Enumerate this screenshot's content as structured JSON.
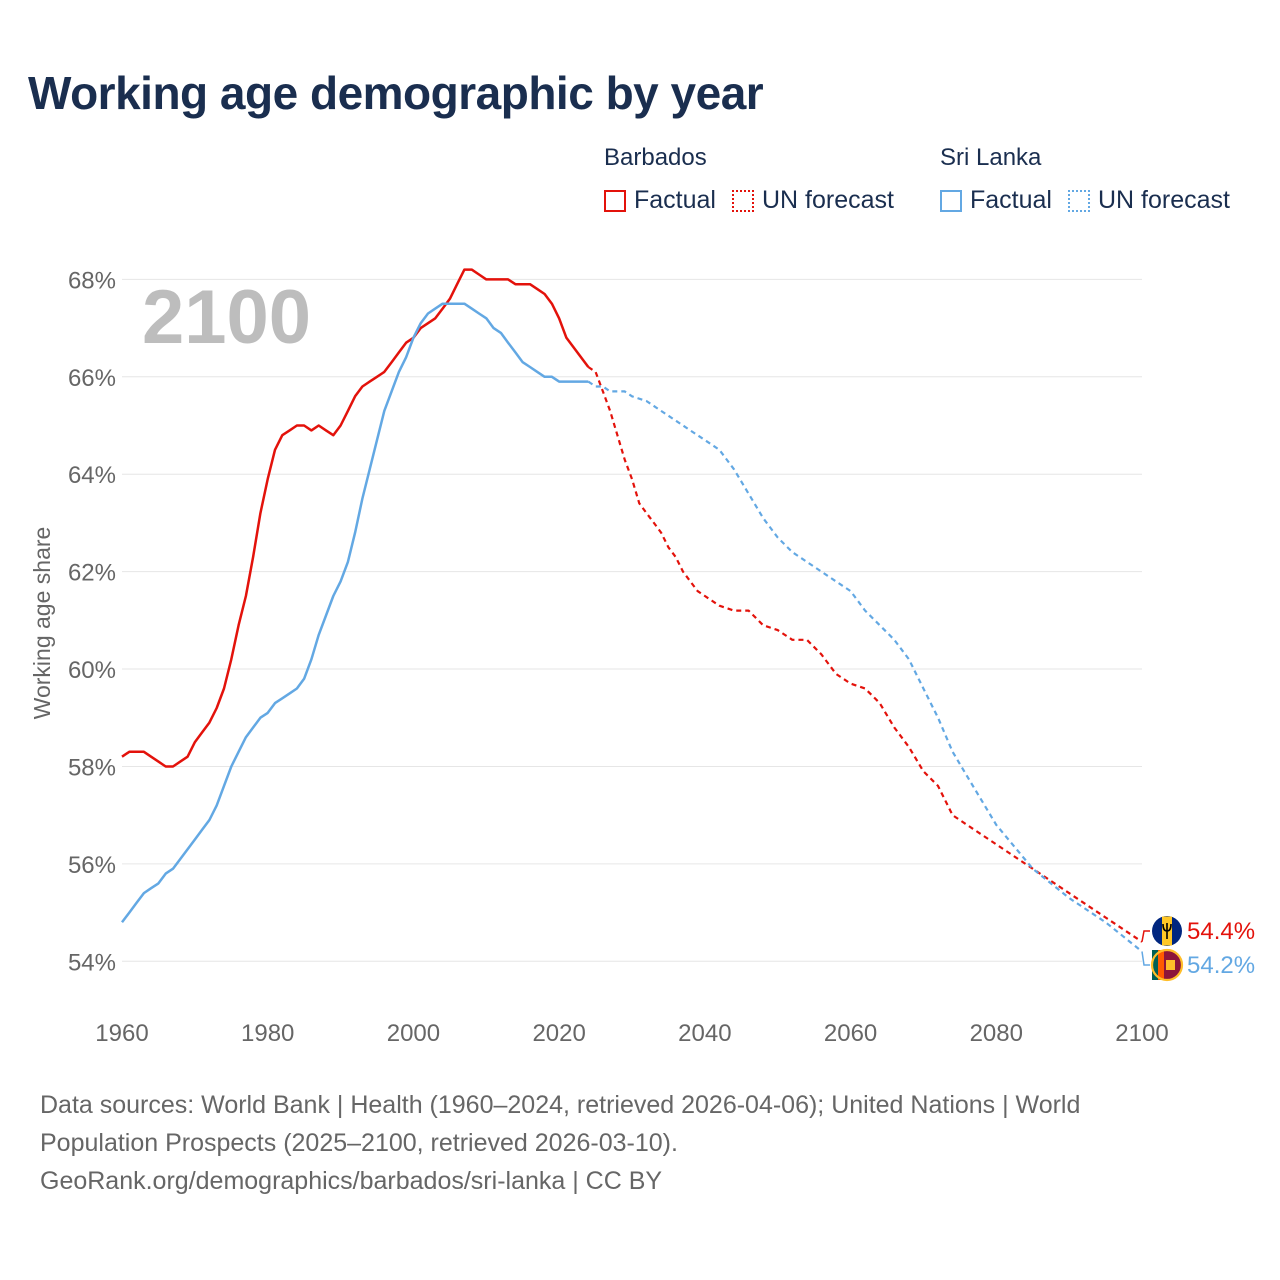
{
  "header": {
    "title": "Working age demographic by year"
  },
  "legend": {
    "groups": [
      {
        "name": "Barbados",
        "color": "#e3120b",
        "items": [
          {
            "label": "Factual",
            "style": "solid"
          },
          {
            "label": "UN forecast",
            "style": "dotted"
          }
        ]
      },
      {
        "name": "Sri Lanka",
        "color": "#63a8e3",
        "items": [
          {
            "label": "Factual",
            "style": "solid"
          },
          {
            "label": "UN forecast",
            "style": "dotted"
          }
        ]
      }
    ]
  },
  "chart_data": {
    "type": "line",
    "year_label": "2100",
    "ylabel": "Working age share",
    "xlabel": "",
    "xlim": [
      1960,
      2100
    ],
    "ylim": [
      53,
      68.5
    ],
    "x_ticks": [
      1960,
      1980,
      2000,
      2020,
      2040,
      2060,
      2080,
      2100
    ],
    "y_ticks": [
      54,
      56,
      58,
      60,
      62,
      64,
      66,
      68
    ],
    "y_tick_labels": [
      "54%",
      "56%",
      "58%",
      "60%",
      "62%",
      "64%",
      "66%",
      "68%"
    ],
    "factual_end_year": 2024,
    "series": [
      {
        "name": "Barbados",
        "color": "#e3120b",
        "end_label": "54.4%",
        "flag": "barbados-flag-icon",
        "points": [
          [
            1960,
            58.2
          ],
          [
            1961,
            58.3
          ],
          [
            1962,
            58.3
          ],
          [
            1963,
            58.3
          ],
          [
            1964,
            58.2
          ],
          [
            1965,
            58.1
          ],
          [
            1966,
            58.0
          ],
          [
            1967,
            58.0
          ],
          [
            1968,
            58.1
          ],
          [
            1969,
            58.2
          ],
          [
            1970,
            58.5
          ],
          [
            1971,
            58.7
          ],
          [
            1972,
            58.9
          ],
          [
            1973,
            59.2
          ],
          [
            1974,
            59.6
          ],
          [
            1975,
            60.2
          ],
          [
            1976,
            60.9
          ],
          [
            1977,
            61.5
          ],
          [
            1978,
            62.3
          ],
          [
            1979,
            63.2
          ],
          [
            1980,
            63.9
          ],
          [
            1981,
            64.5
          ],
          [
            1982,
            64.8
          ],
          [
            1983,
            64.9
          ],
          [
            1984,
            65.0
          ],
          [
            1985,
            65.0
          ],
          [
            1986,
            64.9
          ],
          [
            1987,
            65.0
          ],
          [
            1988,
            64.9
          ],
          [
            1989,
            64.8
          ],
          [
            1990,
            65.0
          ],
          [
            1991,
            65.3
          ],
          [
            1992,
            65.6
          ],
          [
            1993,
            65.8
          ],
          [
            1994,
            65.9
          ],
          [
            1995,
            66.0
          ],
          [
            1996,
            66.1
          ],
          [
            1997,
            66.3
          ],
          [
            1998,
            66.5
          ],
          [
            1999,
            66.7
          ],
          [
            2000,
            66.8
          ],
          [
            2001,
            67.0
          ],
          [
            2002,
            67.1
          ],
          [
            2003,
            67.2
          ],
          [
            2004,
            67.4
          ],
          [
            2005,
            67.6
          ],
          [
            2006,
            67.9
          ],
          [
            2007,
            68.2
          ],
          [
            2008,
            68.2
          ],
          [
            2009,
            68.1
          ],
          [
            2010,
            68.0
          ],
          [
            2011,
            68.0
          ],
          [
            2012,
            68.0
          ],
          [
            2013,
            68.0
          ],
          [
            2014,
            67.9
          ],
          [
            2015,
            67.9
          ],
          [
            2016,
            67.9
          ],
          [
            2017,
            67.8
          ],
          [
            2018,
            67.7
          ],
          [
            2019,
            67.5
          ],
          [
            2020,
            67.2
          ],
          [
            2021,
            66.8
          ],
          [
            2022,
            66.6
          ],
          [
            2023,
            66.4
          ],
          [
            2024,
            66.2
          ],
          [
            2025,
            66.1
          ],
          [
            2026,
            65.7
          ],
          [
            2027,
            65.3
          ],
          [
            2028,
            64.8
          ],
          [
            2029,
            64.3
          ],
          [
            2030,
            63.9
          ],
          [
            2031,
            63.4
          ],
          [
            2032,
            63.2
          ],
          [
            2033,
            63.0
          ],
          [
            2034,
            62.8
          ],
          [
            2035,
            62.5
          ],
          [
            2036,
            62.3
          ],
          [
            2037,
            62.0
          ],
          [
            2038,
            61.8
          ],
          [
            2039,
            61.6
          ],
          [
            2040,
            61.5
          ],
          [
            2042,
            61.3
          ],
          [
            2044,
            61.2
          ],
          [
            2046,
            61.2
          ],
          [
            2048,
            60.9
          ],
          [
            2050,
            60.8
          ],
          [
            2052,
            60.6
          ],
          [
            2054,
            60.6
          ],
          [
            2056,
            60.3
          ],
          [
            2058,
            59.9
          ],
          [
            2060,
            59.7
          ],
          [
            2062,
            59.6
          ],
          [
            2064,
            59.3
          ],
          [
            2066,
            58.8
          ],
          [
            2068,
            58.4
          ],
          [
            2070,
            57.9
          ],
          [
            2072,
            57.6
          ],
          [
            2074,
            57.0
          ],
          [
            2076,
            56.8
          ],
          [
            2080,
            56.4
          ],
          [
            2085,
            55.9
          ],
          [
            2090,
            55.4
          ],
          [
            2095,
            54.9
          ],
          [
            2100,
            54.4
          ]
        ]
      },
      {
        "name": "Sri Lanka",
        "color": "#63a8e3",
        "end_label": "54.2%",
        "flag": "sri-lanka-flag-icon",
        "points": [
          [
            1960,
            54.8
          ],
          [
            1961,
            55.0
          ],
          [
            1962,
            55.2
          ],
          [
            1963,
            55.4
          ],
          [
            1964,
            55.5
          ],
          [
            1965,
            55.6
          ],
          [
            1966,
            55.8
          ],
          [
            1967,
            55.9
          ],
          [
            1968,
            56.1
          ],
          [
            1969,
            56.3
          ],
          [
            1970,
            56.5
          ],
          [
            1971,
            56.7
          ],
          [
            1972,
            56.9
          ],
          [
            1973,
            57.2
          ],
          [
            1974,
            57.6
          ],
          [
            1975,
            58.0
          ],
          [
            1976,
            58.3
          ],
          [
            1977,
            58.6
          ],
          [
            1978,
            58.8
          ],
          [
            1979,
            59.0
          ],
          [
            1980,
            59.1
          ],
          [
            1981,
            59.3
          ],
          [
            1982,
            59.4
          ],
          [
            1983,
            59.5
          ],
          [
            1984,
            59.6
          ],
          [
            1985,
            59.8
          ],
          [
            1986,
            60.2
          ],
          [
            1987,
            60.7
          ],
          [
            1988,
            61.1
          ],
          [
            1989,
            61.5
          ],
          [
            1990,
            61.8
          ],
          [
            1991,
            62.2
          ],
          [
            1992,
            62.8
          ],
          [
            1993,
            63.5
          ],
          [
            1994,
            64.1
          ],
          [
            1995,
            64.7
          ],
          [
            1996,
            65.3
          ],
          [
            1997,
            65.7
          ],
          [
            1998,
            66.1
          ],
          [
            1999,
            66.4
          ],
          [
            2000,
            66.8
          ],
          [
            2001,
            67.1
          ],
          [
            2002,
            67.3
          ],
          [
            2003,
            67.4
          ],
          [
            2004,
            67.5
          ],
          [
            2005,
            67.5
          ],
          [
            2006,
            67.5
          ],
          [
            2007,
            67.5
          ],
          [
            2008,
            67.4
          ],
          [
            2009,
            67.3
          ],
          [
            2010,
            67.2
          ],
          [
            2011,
            67.0
          ],
          [
            2012,
            66.9
          ],
          [
            2013,
            66.7
          ],
          [
            2014,
            66.5
          ],
          [
            2015,
            66.3
          ],
          [
            2016,
            66.2
          ],
          [
            2017,
            66.1
          ],
          [
            2018,
            66.0
          ],
          [
            2019,
            66.0
          ],
          [
            2020,
            65.9
          ],
          [
            2021,
            65.9
          ],
          [
            2022,
            65.9
          ],
          [
            2023,
            65.9
          ],
          [
            2024,
            65.9
          ],
          [
            2025,
            65.8
          ],
          [
            2026,
            65.8
          ],
          [
            2027,
            65.7
          ],
          [
            2028,
            65.7
          ],
          [
            2029,
            65.7
          ],
          [
            2030,
            65.6
          ],
          [
            2032,
            65.5
          ],
          [
            2034,
            65.3
          ],
          [
            2036,
            65.1
          ],
          [
            2038,
            64.9
          ],
          [
            2040,
            64.7
          ],
          [
            2042,
            64.5
          ],
          [
            2044,
            64.1
          ],
          [
            2046,
            63.6
          ],
          [
            2048,
            63.1
          ],
          [
            2050,
            62.7
          ],
          [
            2052,
            62.4
          ],
          [
            2054,
            62.2
          ],
          [
            2056,
            62.0
          ],
          [
            2058,
            61.8
          ],
          [
            2060,
            61.6
          ],
          [
            2062,
            61.2
          ],
          [
            2064,
            60.9
          ],
          [
            2066,
            60.6
          ],
          [
            2068,
            60.2
          ],
          [
            2070,
            59.6
          ],
          [
            2072,
            59.0
          ],
          [
            2074,
            58.3
          ],
          [
            2076,
            57.8
          ],
          [
            2080,
            56.8
          ],
          [
            2085,
            55.9
          ],
          [
            2090,
            55.3
          ],
          [
            2095,
            54.8
          ],
          [
            2100,
            54.2
          ]
        ]
      }
    ]
  },
  "footer": {
    "sources": "Data sources: World Bank | Health (1960–2024, retrieved 2026-04-06); United Nations | World Population Prospects (2025–2100, retrieved 2026-03-10).",
    "link": "GeoRank.org/demographics/barbados/sri-lanka | CC BY"
  }
}
